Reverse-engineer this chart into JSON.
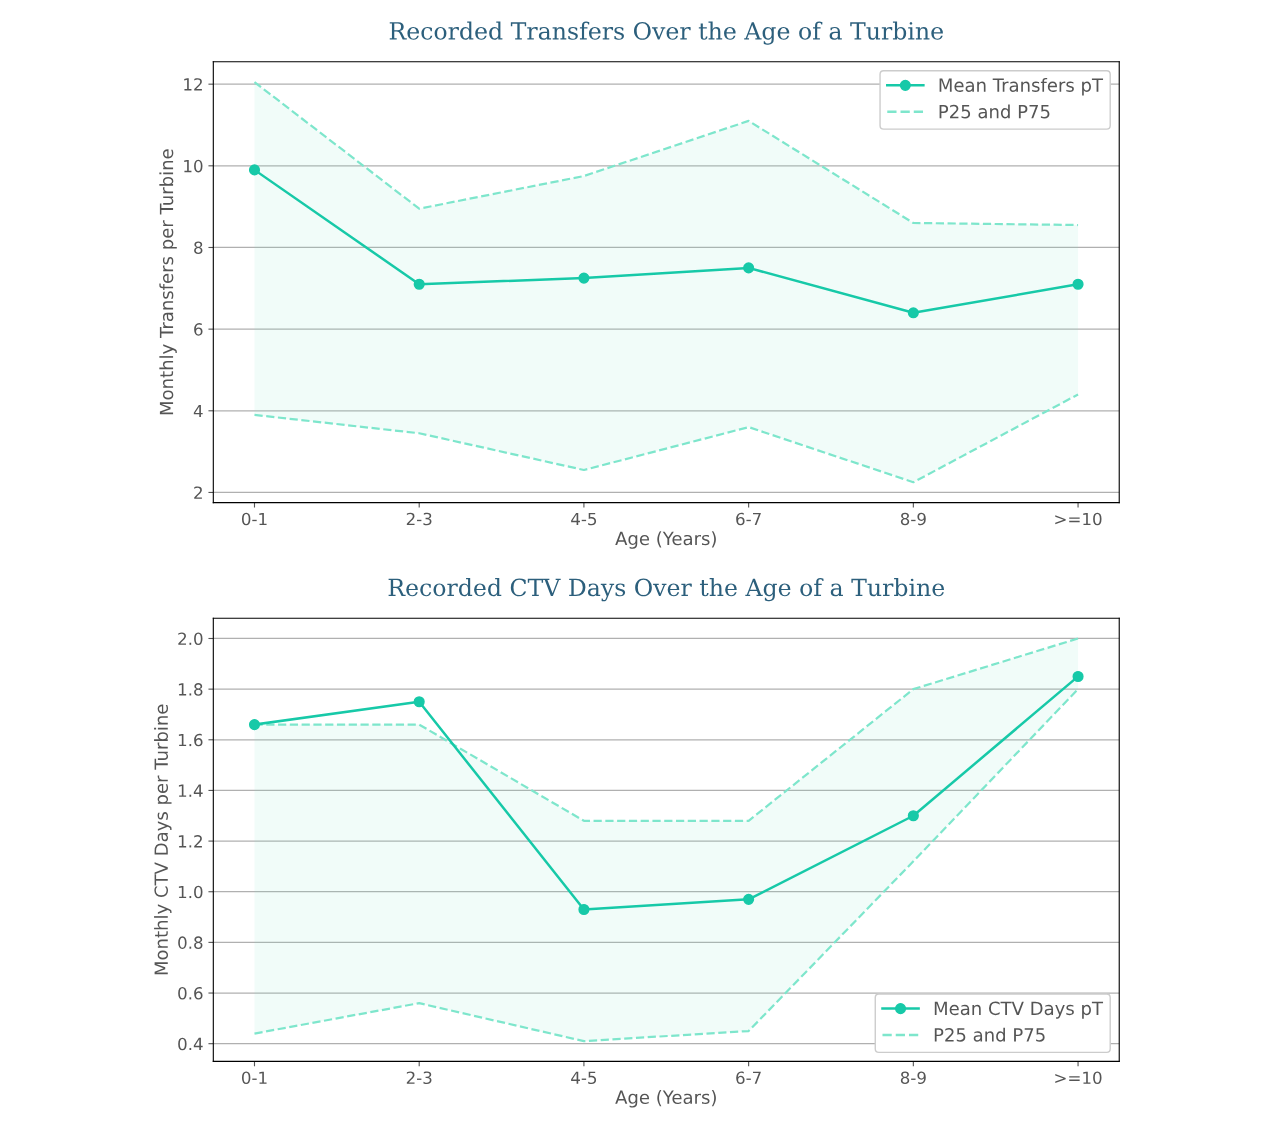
{
  "chart_data": [
    {
      "type": "line",
      "title": "Recorded Transfers Over the Age of a Turbine",
      "xlabel": "Age (Years)",
      "ylabel": "Monthly Transfers per Turbine",
      "categories": [
        "0-1",
        "2-3",
        "4-5",
        "6-7",
        "8-9",
        ">=10"
      ],
      "series": [
        {
          "name": "Mean Transfers pT",
          "color": "#17c9a8",
          "marker": "circle",
          "line_style": "solid",
          "values": [
            9.9,
            7.1,
            7.25,
            7.5,
            6.4,
            7.1
          ]
        },
        {
          "name": "P25 and P75",
          "color": "#7ee6cc",
          "marker": "none",
          "line_style": "dashed",
          "values": [
            3.9,
            3.45,
            2.55,
            3.6,
            2.25,
            4.4
          ],
          "lower": [
            3.9,
            3.45,
            2.55,
            3.6,
            2.25,
            4.4
          ],
          "upper": [
            12.05,
            8.95,
            9.75,
            11.1,
            8.6,
            8.55
          ]
        },
        {
          "color": "#7ee6cc",
          "marker": "none",
          "line_style": "dashed",
          "values": [
            12.05,
            8.95,
            9.75,
            11.1,
            8.6,
            8.55
          ]
        }
      ],
      "ylim": [
        1.75,
        12.55
      ],
      "yticks": [
        2,
        4,
        6,
        8,
        10,
        12
      ],
      "grid": "y",
      "legend": "top right"
    },
    {
      "type": "line",
      "title": "Recorded CTV Days Over the Age of a Turbine",
      "xlabel": "Age (Years)",
      "ylabel": "Monthly CTV Days per Turbine",
      "categories": [
        "0-1",
        "2-3",
        "4-5",
        "6-7",
        "8-9",
        ">=10"
      ],
      "series": [
        {
          "name": "Mean CTV Days pT",
          "color": "#17c9a8",
          "marker": "circle",
          "line_style": "solid",
          "values": [
            1.66,
            1.75,
            0.93,
            0.97,
            1.3,
            1.85
          ]
        },
        {
          "name": "P25 and P75",
          "color": "#7ee6cc",
          "marker": "none",
          "line_style": "dashed",
          "values": [
            0.44,
            0.56,
            0.41,
            0.45,
            1.12,
            1.8
          ],
          "lower": [
            0.44,
            0.56,
            0.41,
            0.45,
            1.12,
            1.8
          ],
          "upper": [
            1.66,
            1.66,
            1.28,
            1.28,
            1.8,
            2.0
          ]
        },
        {
          "color": "#7ee6cc",
          "marker": "none",
          "line_style": "dashed",
          "values": [
            1.66,
            1.66,
            1.28,
            1.28,
            1.8,
            2.0
          ]
        }
      ],
      "ylim": [
        0.33,
        2.08
      ],
      "yticks": [
        {
          "value": 0.4,
          "label": "0.4"
        },
        {
          "value": 0.6,
          "label": "0.6"
        },
        {
          "value": 0.8,
          "label": "0.8"
        },
        {
          "value": 1.0,
          "label": "1.0"
        },
        {
          "value": 1.2,
          "label": "1.2"
        },
        {
          "value": 1.4,
          "label": "1.4"
        },
        {
          "value": 1.6,
          "label": "1.6"
        },
        {
          "value": 1.8,
          "label": "1.8"
        },
        {
          "value": 2.0,
          "label": "2.0"
        }
      ],
      "grid": "y",
      "legend": "bottom right"
    }
  ]
}
